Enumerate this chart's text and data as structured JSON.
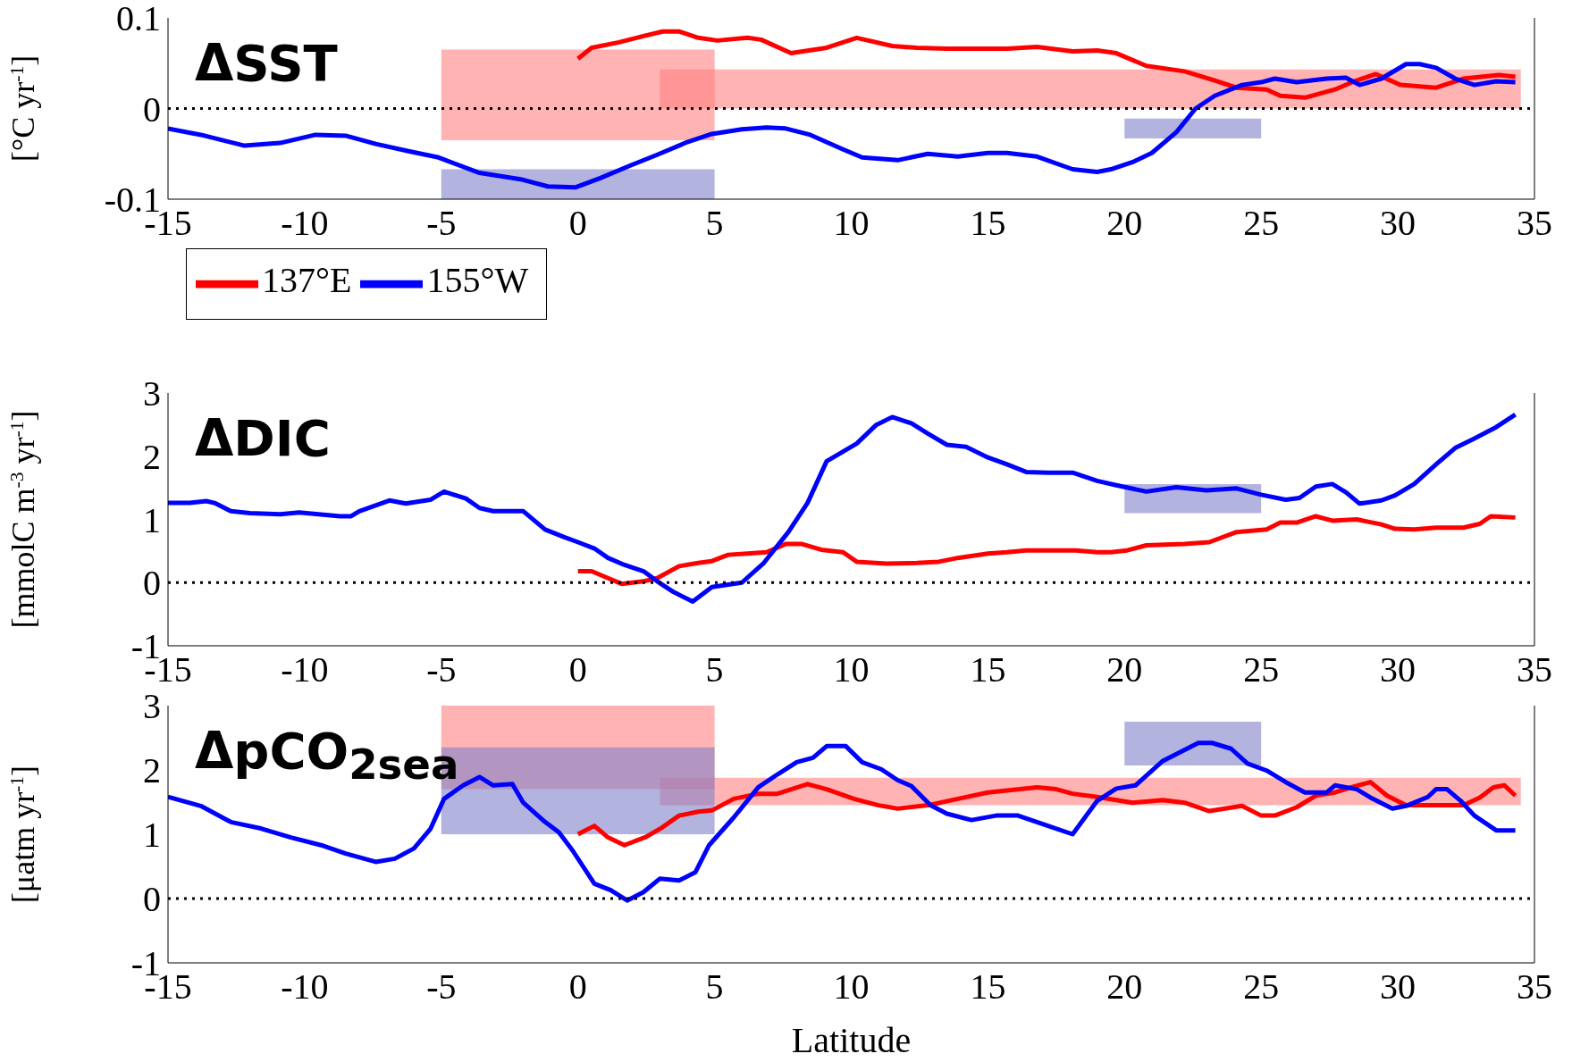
{
  "chart_data": [
    {
      "type": "line",
      "title": "ΔSST",
      "ylabel": "[°C yr$^{-1}$]",
      "xlim": [
        -15,
        35
      ],
      "xticks": [
        -15,
        -10,
        -5,
        0,
        5,
        10,
        15,
        20,
        25,
        30,
        35
      ],
      "ylim": [
        -0.1,
        0.1
      ],
      "yticks": [
        -0.1,
        0,
        0.1
      ],
      "legend": "bottom left",
      "ref_lines": [
        {
          "axis": "y",
          "value": 0,
          "color": "#000000",
          "line_style": "dotted"
        }
      ],
      "series": [
        {
          "color": "#ff8080",
          "x": [
            -5,
            5
          ],
          "values": [
            null,
            null
          ],
          "lower": [
            -0.035,
            -0.035
          ],
          "upper": [
            0.065,
            0.065
          ]
        },
        {
          "color": "#ff8080",
          "x": [
            3,
            34.5
          ],
          "values": [
            null,
            null
          ],
          "lower": [
            0,
            0
          ],
          "upper": [
            0.043,
            0.043
          ]
        },
        {
          "color": "#8080cc",
          "x": [
            -5,
            5
          ],
          "values": [
            null,
            null
          ],
          "lower": [
            -0.1,
            -0.1
          ],
          "upper": [
            -0.067,
            -0.067
          ]
        },
        {
          "color": "#8080cc",
          "x": [
            20,
            25
          ],
          "values": [
            null,
            null
          ],
          "lower": [
            -0.033,
            -0.033
          ],
          "upper": [
            -0.011,
            -0.011
          ]
        },
        {
          "name": "137°E",
          "color": "#ff0000",
          "x": [
            0,
            0.5,
            1.5,
            2.4,
            3.1,
            3.7,
            4.4,
            5.1,
            6.2,
            6.7,
            7.8,
            9.1,
            10.2,
            11.5,
            12.4,
            13.5,
            15.7,
            16.8,
            18.1,
            19,
            19.7,
            20.8,
            22.2,
            23.3,
            24.1,
            25.2,
            25.7,
            26.6,
            27.7,
            28.4,
            29.2,
            30.1,
            31.4,
            32.4,
            33.7,
            34.3
          ],
          "values": [
            0.055,
            0.067,
            0.073,
            0.08,
            0.085,
            0.085,
            0.078,
            0.075,
            0.078,
            0.076,
            0.061,
            0.067,
            0.078,
            0.069,
            0.067,
            0.066,
            0.066,
            0.068,
            0.063,
            0.064,
            0.061,
            0.047,
            0.041,
            0.031,
            0.023,
            0.021,
            0.014,
            0.012,
            0.021,
            0.03,
            0.038,
            0.026,
            0.023,
            0.033,
            0.037,
            0.035
          ]
        },
        {
          "name": "155°W",
          "color": "#0000ff",
          "x": [
            -15,
            -13.8,
            -12.2,
            -10.9,
            -9.6,
            -8.5,
            -7.4,
            -6.2,
            -5.1,
            -3.6,
            -2.1,
            -1.1,
            -0.1,
            0.8,
            1.9,
            2.9,
            4,
            4.9,
            6,
            6.9,
            7.6,
            8.5,
            9.7,
            10.4,
            11.7,
            12.8,
            13.9,
            15,
            15.7,
            16.8,
            18.1,
            19,
            19.5,
            20.3,
            21,
            21.9,
            22.6,
            23.3,
            24.3,
            25,
            25.5,
            26.3,
            27.4,
            28.1,
            28.6,
            29.4,
            30.3,
            30.8,
            31.4,
            32.1,
            32.8,
            33.6,
            34.3
          ],
          "values": [
            -0.022,
            -0.029,
            -0.041,
            -0.038,
            -0.029,
            -0.03,
            -0.039,
            -0.047,
            -0.054,
            -0.071,
            -0.078,
            -0.086,
            -0.087,
            -0.077,
            -0.063,
            -0.051,
            -0.037,
            -0.028,
            -0.023,
            -0.021,
            -0.022,
            -0.029,
            -0.045,
            -0.054,
            -0.057,
            -0.05,
            -0.053,
            -0.049,
            -0.049,
            -0.053,
            -0.067,
            -0.07,
            -0.067,
            -0.059,
            -0.049,
            -0.026,
            0,
            0.014,
            0.026,
            0.029,
            0.033,
            0.029,
            0.033,
            0.034,
            0.026,
            0.033,
            0.049,
            0.049,
            0.045,
            0.033,
            0.026,
            0.03,
            0.029
          ]
        }
      ]
    },
    {
      "type": "line",
      "title": "ΔDIC",
      "ylabel": "[mmolC m$^{-3}$ yr$^{-1}$]",
      "xlim": [
        -15,
        35
      ],
      "xticks": [
        -15,
        -10,
        -5,
        0,
        5,
        10,
        15,
        20,
        25,
        30,
        35
      ],
      "ylim": [
        -1,
        3
      ],
      "yticks": [
        -1,
        0,
        1,
        2,
        3
      ],
      "ref_lines": [
        {
          "axis": "y",
          "value": 0,
          "color": "#000000",
          "line_style": "dotted"
        }
      ],
      "series": [
        {
          "color": "#8080cc",
          "x": [
            20,
            25
          ],
          "values": [
            null,
            null
          ],
          "lower": [
            1.1,
            1.1
          ],
          "upper": [
            1.56,
            1.56
          ]
        },
        {
          "color": "#ff0000",
          "x": [
            0,
            0.5,
            1.1,
            1.6,
            2.4,
            2.9,
            3.7,
            4.4,
            4.9,
            5.5,
            6.2,
            6.9,
            7.6,
            8.2,
            8.9,
            9.7,
            10.2,
            11.3,
            12.4,
            13.2,
            13.9,
            15,
            15.7,
            16.4,
            18.2,
            19,
            19.5,
            20.1,
            20.8,
            22.2,
            23.1,
            24.1,
            25.2,
            25.7,
            26.3,
            27,
            27.6,
            28.5,
            29.4,
            29.9,
            30.6,
            31.4,
            32.4,
            33,
            33.4,
            34.3
          ],
          "values": [
            0.18,
            0.18,
            0.07,
            -0.02,
            0.02,
            0.07,
            0.26,
            0.31,
            0.34,
            0.44,
            0.46,
            0.48,
            0.61,
            0.61,
            0.52,
            0.48,
            0.33,
            0.3,
            0.31,
            0.33,
            0.39,
            0.46,
            0.48,
            0.51,
            0.51,
            0.48,
            0.48,
            0.51,
            0.59,
            0.61,
            0.64,
            0.8,
            0.84,
            0.95,
            0.95,
            1.05,
            0.98,
            1,
            0.92,
            0.85,
            0.84,
            0.87,
            0.87,
            0.93,
            1.05,
            1.03
          ]
        },
        {
          "color": "#0000ff",
          "x": [
            -15,
            -14.2,
            -13.6,
            -13.3,
            -12.7,
            -12,
            -10.9,
            -10.2,
            -8.7,
            -8.3,
            -8,
            -6.9,
            -6.3,
            -5.4,
            -4.9,
            -4.1,
            -3.6,
            -3.1,
            -2.5,
            -2,
            -1.2,
            -0.5,
            0,
            0.6,
            1.1,
            1.7,
            2.4,
            2.9,
            3.5,
            4.2,
            4.9,
            6,
            6.8,
            7.7,
            8.4,
            9.1,
            10.2,
            10.9,
            11.5,
            12.2,
            12.8,
            13.5,
            14.2,
            15,
            15.7,
            16.4,
            17.2,
            18.1,
            19,
            19.7,
            20.8,
            21.9,
            23,
            24.1,
            25,
            25.9,
            26.4,
            27,
            27.6,
            28.1,
            28.6,
            29.4,
            29.9,
            30.6,
            31.4,
            32.1,
            32.8,
            33.6,
            34.3
          ],
          "values": [
            1.26,
            1.26,
            1.29,
            1.26,
            1.13,
            1.1,
            1.08,
            1.11,
            1.05,
            1.05,
            1.13,
            1.3,
            1.25,
            1.31,
            1.44,
            1.33,
            1.18,
            1.13,
            1.13,
            1.13,
            0.84,
            0.72,
            0.64,
            0.54,
            0.39,
            0.28,
            0.18,
            0.02,
            -0.15,
            -0.3,
            -0.07,
            0,
            0.31,
            0.8,
            1.26,
            1.92,
            2.2,
            2.49,
            2.62,
            2.52,
            2.36,
            2.18,
            2.15,
            1.98,
            1.87,
            1.75,
            1.74,
            1.74,
            1.61,
            1.54,
            1.44,
            1.51,
            1.46,
            1.49,
            1.39,
            1.31,
            1.34,
            1.52,
            1.56,
            1.43,
            1.25,
            1.3,
            1.38,
            1.56,
            1.87,
            2.13,
            2.28,
            2.46,
            2.66
          ]
        }
      ]
    },
    {
      "type": "line",
      "title": "ΔpCO$_{2sea}$",
      "ylabel": "[μatm yr$^{-1}$]",
      "xlabel": "Latitude",
      "xlim": [
        -15,
        35
      ],
      "xticks": [
        -15,
        -10,
        -5,
        0,
        5,
        10,
        15,
        20,
        25,
        30,
        35
      ],
      "ylim": [
        -1,
        3
      ],
      "yticks": [
        -1,
        0,
        1,
        2,
        3
      ],
      "ref_lines": [
        {
          "axis": "y",
          "value": 0,
          "color": "#000000",
          "line_style": "dotted"
        }
      ],
      "series": [
        {
          "color": "#ff8080",
          "x": [
            -5,
            5
          ],
          "values": [
            null,
            null
          ],
          "lower": [
            1.7,
            1.7
          ],
          "upper": [
            3,
            3
          ]
        },
        {
          "color": "#ff8080",
          "x": [
            3,
            34.5
          ],
          "values": [
            null,
            null
          ],
          "lower": [
            1.45,
            1.45
          ],
          "upper": [
            1.88,
            1.88
          ]
        },
        {
          "color": "#8080cc",
          "x": [
            -5,
            5
          ],
          "values": [
            null,
            null
          ],
          "lower": [
            1,
            1
          ],
          "upper": [
            2.35,
            2.35
          ]
        },
        {
          "color": "#8080cc",
          "x": [
            20,
            25
          ],
          "values": [
            null,
            null
          ],
          "lower": [
            2.07,
            2.07
          ],
          "upper": [
            2.75,
            2.75
          ]
        },
        {
          "color": "#ff0000",
          "x": [
            0,
            0.6,
            1.1,
            1.7,
            2.5,
            3.1,
            3.7,
            4.4,
            4.9,
            5.7,
            6.6,
            7.3,
            8.4,
            9.1,
            10.1,
            11,
            11.7,
            12.8,
            13.9,
            15,
            16.8,
            17.5,
            18.1,
            19,
            20.3,
            21.4,
            22.2,
            23.1,
            24.3,
            25,
            25.5,
            26.3,
            27,
            27.7,
            28.3,
            29,
            29.6,
            30.3,
            31.4,
            32.4,
            33,
            33.5,
            33.9,
            34.3
          ],
          "values": [
            1,
            1.13,
            0.95,
            0.83,
            0.96,
            1.11,
            1.29,
            1.35,
            1.37,
            1.55,
            1.63,
            1.63,
            1.78,
            1.7,
            1.55,
            1.45,
            1.4,
            1.45,
            1.55,
            1.65,
            1.73,
            1.7,
            1.63,
            1.58,
            1.49,
            1.53,
            1.49,
            1.36,
            1.44,
            1.29,
            1.29,
            1.42,
            1.6,
            1.65,
            1.73,
            1.81,
            1.6,
            1.45,
            1.45,
            1.45,
            1.57,
            1.73,
            1.76,
            1.6
          ]
        },
        {
          "color": "#0000ff",
          "x": [
            -15,
            -13.8,
            -12.7,
            -11.6,
            -10.5,
            -9.4,
            -8.5,
            -7.4,
            -6.7,
            -6,
            -5.4,
            -4.9,
            -4.2,
            -3.6,
            -3.1,
            -2.4,
            -2,
            -1.2,
            -0.7,
            -0.2,
            0.6,
            1.2,
            1.8,
            2.4,
            3,
            3.7,
            4.3,
            4.8,
            5.7,
            6.6,
            7.3,
            8,
            8.6,
            9.1,
            9.8,
            10.4,
            11.1,
            11.7,
            12.2,
            12.9,
            13.5,
            14.4,
            15.3,
            16.1,
            17.2,
            18.1,
            19,
            19.7,
            20.4,
            21.4,
            22.7,
            23.2,
            23.9,
            24.5,
            25.2,
            25.9,
            26.6,
            27.4,
            27.7,
            28.5,
            29,
            29.8,
            30.3,
            31.1,
            31.4,
            31.8,
            32.3,
            32.8,
            33.6,
            34.3
          ],
          "values": [
            1.58,
            1.44,
            1.19,
            1.09,
            0.95,
            0.83,
            0.7,
            0.57,
            0.62,
            0.78,
            1.08,
            1.55,
            1.76,
            1.89,
            1.76,
            1.78,
            1.49,
            1.19,
            1.03,
            0.75,
            0.23,
            0.13,
            -0.03,
            0.1,
            0.31,
            0.28,
            0.41,
            0.83,
            1.26,
            1.73,
            1.93,
            2.12,
            2.19,
            2.37,
            2.37,
            2.12,
            2.01,
            1.84,
            1.75,
            1.45,
            1.32,
            1.22,
            1.29,
            1.29,
            1.13,
            1,
            1.52,
            1.71,
            1.76,
            2.14,
            2.42,
            2.42,
            2.33,
            2.1,
            1.99,
            1.81,
            1.65,
            1.65,
            1.76,
            1.7,
            1.57,
            1.4,
            1.44,
            1.58,
            1.7,
            1.7,
            1.52,
            1.29,
            1.06,
            1.06
          ]
        }
      ]
    }
  ]
}
